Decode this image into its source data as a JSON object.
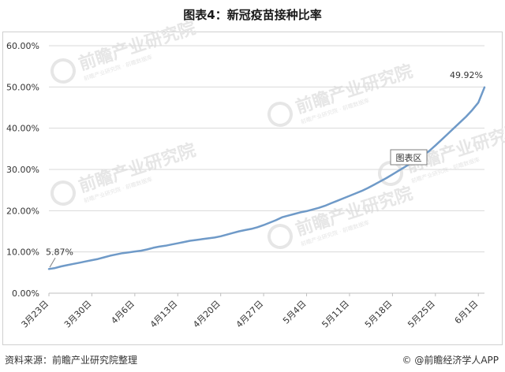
{
  "title": "图表4：新冠疫苗接种比率",
  "footer": {
    "source": "资料来源：前瞻产业研究院整理",
    "credit_icon": "copyright-icon",
    "credit": "@前瞻经济学人APP"
  },
  "watermark": {
    "text": "前瞻产业研究院",
    "sub": "前瞻产业研究院 · 前瞻数据库"
  },
  "chart_data": {
    "type": "line",
    "title": "图表4：新冠疫苗接种比率",
    "xlabel": "",
    "ylabel": "",
    "ylim": [
      0,
      0.6
    ],
    "y_ticks": [
      0,
      0.1,
      0.2,
      0.3,
      0.4,
      0.5,
      0.6
    ],
    "y_tick_labels": [
      "0.00%",
      "10.00%",
      "20.00%",
      "30.00%",
      "40.00%",
      "50.00%",
      "60.00%"
    ],
    "x_tick_labels": [
      "3月23日",
      "3月30日",
      "4月6日",
      "4月13日",
      "4月20日",
      "4月27日",
      "5月4日",
      "5月11日",
      "5月18日",
      "5月25日",
      "6月1日"
    ],
    "x_tick_day_index": [
      0,
      7,
      14,
      21,
      28,
      35,
      42,
      49,
      56,
      63,
      70
    ],
    "x_range_days": [
      0,
      71
    ],
    "grid": "horizontal",
    "color": "#6f9ac8",
    "tooltip_label": "图表区",
    "annotations": [
      {
        "label": "5.87%",
        "day": 0,
        "value": 0.0587
      },
      {
        "label": "49.92%",
        "day": 71,
        "value": 0.4992
      }
    ],
    "series": [
      {
        "x_days": [
          0,
          1,
          2,
          3,
          4,
          5,
          6,
          7,
          8,
          9,
          10,
          11,
          12,
          13,
          14,
          15,
          16,
          17,
          18,
          19,
          20,
          21,
          22,
          23,
          24,
          25,
          26,
          27,
          28,
          29,
          30,
          31,
          32,
          33,
          34,
          35,
          36,
          37,
          38,
          39,
          40,
          41,
          42,
          43,
          44,
          45,
          46,
          47,
          48,
          49,
          50,
          51,
          52,
          53,
          54,
          55,
          56,
          57,
          58,
          59,
          60,
          61,
          62,
          63,
          64,
          65,
          66,
          67,
          68,
          69,
          70,
          71
        ],
        "values": [
          0.0587,
          0.061,
          0.065,
          0.068,
          0.071,
          0.074,
          0.077,
          0.08,
          0.083,
          0.087,
          0.091,
          0.094,
          0.097,
          0.099,
          0.101,
          0.103,
          0.106,
          0.11,
          0.113,
          0.115,
          0.118,
          0.121,
          0.124,
          0.127,
          0.129,
          0.131,
          0.133,
          0.135,
          0.138,
          0.142,
          0.146,
          0.15,
          0.153,
          0.156,
          0.16,
          0.165,
          0.171,
          0.177,
          0.184,
          0.188,
          0.192,
          0.196,
          0.199,
          0.203,
          0.207,
          0.212,
          0.218,
          0.224,
          0.23,
          0.236,
          0.242,
          0.248,
          0.255,
          0.263,
          0.271,
          0.279,
          0.288,
          0.297,
          0.306,
          0.315,
          0.324,
          0.334,
          0.345,
          0.358,
          0.372,
          0.386,
          0.4,
          0.414,
          0.428,
          0.444,
          0.462,
          0.4992
        ]
      }
    ]
  }
}
